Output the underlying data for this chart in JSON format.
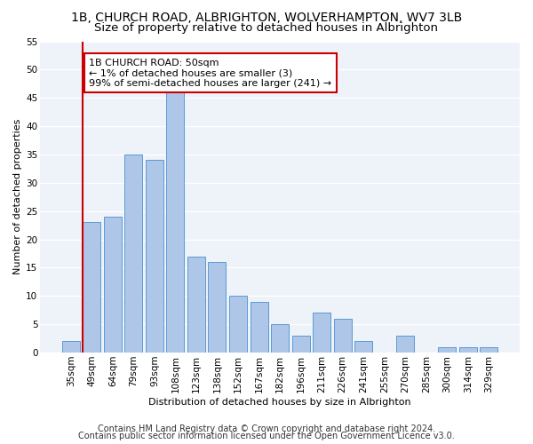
{
  "title": "1B, CHURCH ROAD, ALBRIGHTON, WOLVERHAMPTON, WV7 3LB",
  "subtitle": "Size of property relative to detached houses in Albrighton",
  "xlabel_bottom": "Distribution of detached houses by size in Albrighton",
  "ylabel": "Number of detached properties",
  "categories": [
    "35sqm",
    "49sqm",
    "64sqm",
    "79sqm",
    "93sqm",
    "108sqm",
    "123sqm",
    "138sqm",
    "152sqm",
    "167sqm",
    "182sqm",
    "196sqm",
    "211sqm",
    "226sqm",
    "241sqm",
    "255sqm",
    "270sqm",
    "285sqm",
    "300sqm",
    "314sqm",
    "329sqm"
  ],
  "values": [
    2,
    23,
    24,
    35,
    34,
    46,
    17,
    16,
    10,
    9,
    5,
    3,
    7,
    6,
    2,
    0,
    3,
    0,
    1,
    1,
    1
  ],
  "bar_color": "#aec6e8",
  "bar_edge_color": "#5b9bd5",
  "background_color": "#eef2f9",
  "grid_color": "#ffffff",
  "annotation_box_text": "1B CHURCH ROAD: 50sqm\n← 1% of detached houses are smaller (3)\n99% of semi-detached houses are larger (241) →",
  "annotation_box_color": "#ffffff",
  "annotation_box_edge_color": "#cc0000",
  "annotation_line_color": "#cc0000",
  "ylim": [
    0,
    55
  ],
  "yticks": [
    0,
    5,
    10,
    15,
    20,
    25,
    30,
    35,
    40,
    45,
    50,
    55
  ],
  "footer1": "Contains HM Land Registry data © Crown copyright and database right 2024.",
  "footer2": "Contains public sector information licensed under the Open Government Licence v3.0.",
  "title_fontsize": 10,
  "subtitle_fontsize": 9.5,
  "axis_label_fontsize": 8,
  "tick_fontsize": 7.5,
  "annotation_fontsize": 8,
  "footer_fontsize": 7
}
